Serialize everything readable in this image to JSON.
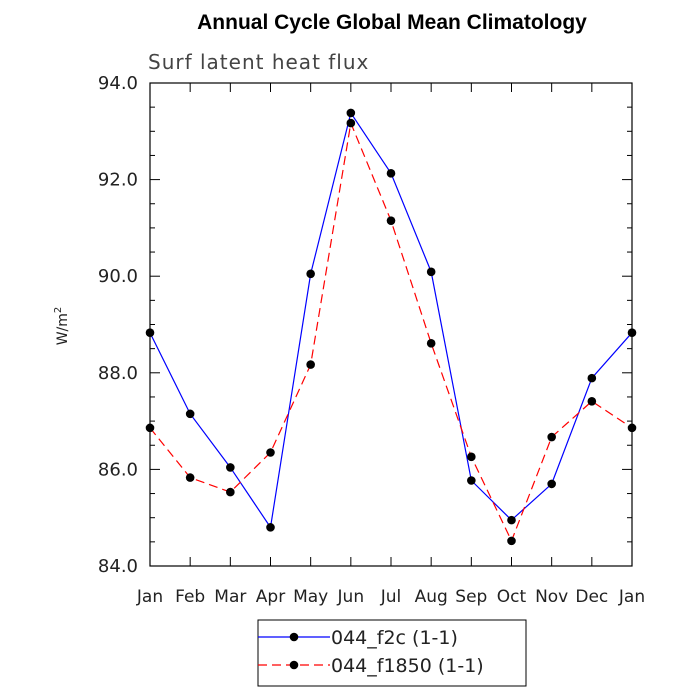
{
  "chart_data": {
    "type": "line",
    "title": "Annual Cycle Global Mean Climatology",
    "subtitle": "Surf latent heat flux",
    "ylabel": "W/m",
    "ylabel_superscript": "2",
    "xlabel": "",
    "categories": [
      "Jan",
      "Feb",
      "Mar",
      "Apr",
      "May",
      "Jun",
      "Jul",
      "Aug",
      "Sep",
      "Oct",
      "Nov",
      "Dec",
      "Jan"
    ],
    "ylim": [
      84.0,
      94.0
    ],
    "yticks": [
      "84.0",
      "86.0",
      "88.0",
      "90.0",
      "92.0",
      "94.0"
    ],
    "grid": false,
    "legend_position": "bottom-center",
    "series": [
      {
        "name": "044_f2c (1-1)",
        "color": "#0000ff",
        "dash": "solid",
        "values": [
          88.83,
          87.15,
          86.04,
          84.8,
          90.05,
          93.38,
          92.13,
          90.09,
          85.77,
          84.95,
          85.7,
          87.89,
          88.83
        ]
      },
      {
        "name": "044_f1850 (1-1)",
        "color": "#ff0000",
        "dash": "dashed",
        "values": [
          86.86,
          85.83,
          85.53,
          86.35,
          88.17,
          93.17,
          91.15,
          88.61,
          86.26,
          84.52,
          86.67,
          87.41,
          86.86
        ]
      }
    ]
  }
}
